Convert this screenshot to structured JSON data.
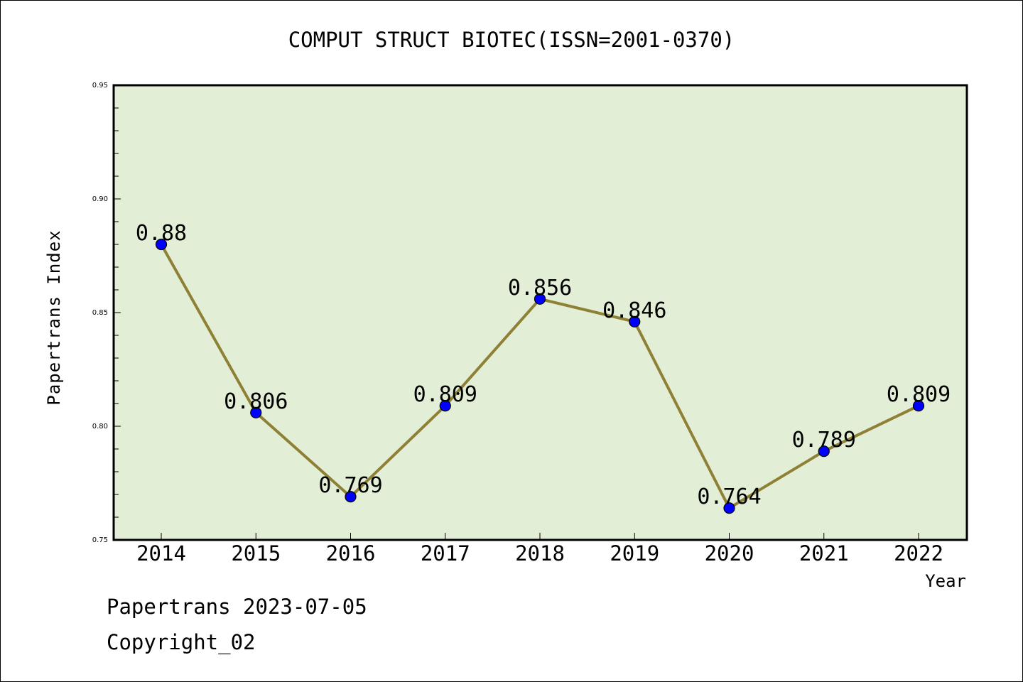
{
  "chart_data": {
    "type": "line",
    "title": "COMPUT STRUCT BIOTEC(ISSN=2001-0370)",
    "xlabel": "Year",
    "ylabel": "Papertrans Index",
    "categories": [
      "2014",
      "2015",
      "2016",
      "2017",
      "2018",
      "2019",
      "2020",
      "2021",
      "2022"
    ],
    "values": [
      0.88,
      0.806,
      0.769,
      0.809,
      0.856,
      0.846,
      0.764,
      0.789,
      0.809
    ],
    "data_labels": [
      "0.88",
      "0.806",
      "0.769",
      "0.809",
      "0.856",
      "0.846",
      "0.764",
      "0.789",
      "0.809"
    ],
    "ylim": [
      0.75,
      0.95
    ],
    "yticks": [
      0.75,
      0.8,
      0.85,
      0.9,
      0.95
    ],
    "ytick_labels": [
      "0.75",
      "0.80",
      "0.85",
      "0.90",
      "0.95"
    ],
    "grid": false,
    "colors": {
      "plot_background": "#e2efd6",
      "line": "#8e8035",
      "marker": "#0000ff"
    }
  },
  "footer": {
    "line1": "Papertrans 2023-07-05",
    "line2": "Copyright_02"
  }
}
